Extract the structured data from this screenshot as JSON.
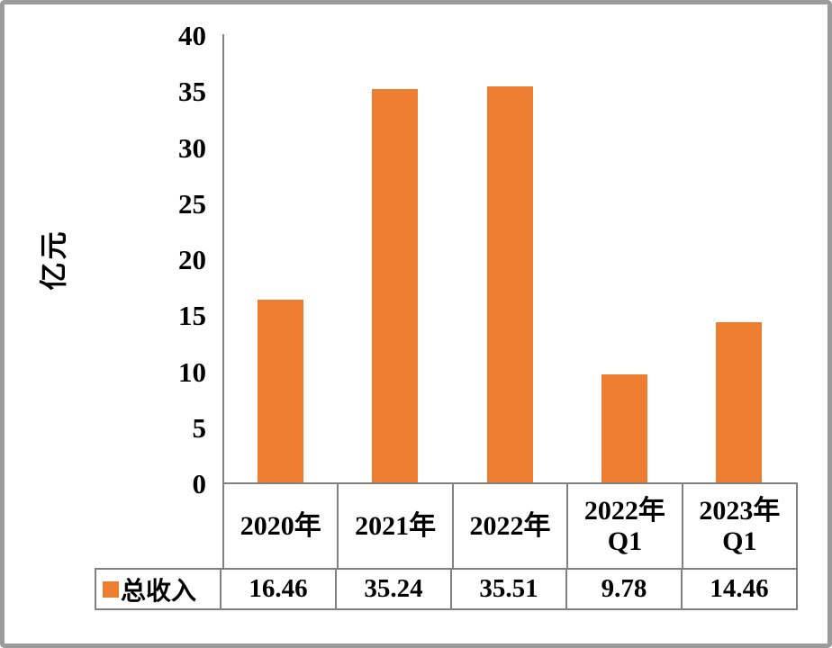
{
  "chart_data": {
    "type": "bar",
    "title": "",
    "ylabel": "亿元",
    "xlabel": "",
    "categories": [
      "2020年",
      "2021年",
      "2022年",
      "2022年\nQ1",
      "2023年\nQ1"
    ],
    "series": [
      {
        "name": "总收入",
        "values": [
          16.46,
          35.24,
          35.51,
          9.78,
          14.46
        ]
      }
    ],
    "ylim": [
      0,
      40
    ],
    "yticks": [
      0,
      5,
      10,
      15,
      20,
      25,
      30,
      35,
      40
    ],
    "grid": false,
    "legend_position": "bottom-table",
    "colors": {
      "bar": "#ED7D31",
      "axis_line": "#808080",
      "table_border": "#808080",
      "frame_border": "#9b9b9b",
      "text": "#000000",
      "background": "#ffffff"
    }
  }
}
